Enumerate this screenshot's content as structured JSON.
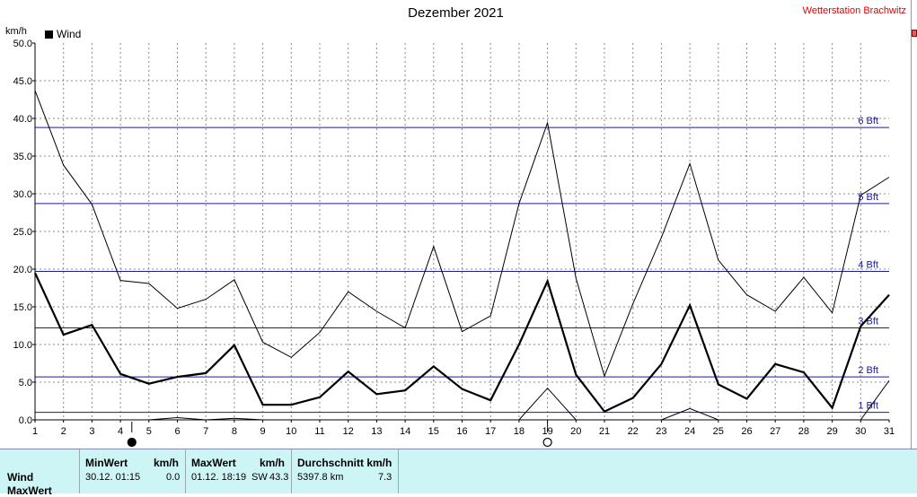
{
  "header": {
    "title": "Dezember 2021",
    "station": "Wetterstation Brachwitz",
    "unit": "km/h",
    "legend_label": "Wind"
  },
  "chart_data": {
    "type": "line",
    "title": "Dezember 2021",
    "ylabel": "km/h",
    "xlim": [
      1,
      31
    ],
    "ylim": [
      0,
      50
    ],
    "x_ticks": [
      "1",
      "2",
      "3",
      "4",
      "5",
      "6",
      "7",
      "8",
      "9",
      "10",
      "11",
      "12",
      "13",
      "14",
      "15",
      "16",
      "17",
      "18",
      "19",
      "20",
      "21",
      "22",
      "23",
      "24",
      "25",
      "26",
      "27",
      "28",
      "29",
      "30",
      "31"
    ],
    "y_ticks": [
      "0.0",
      "5.0",
      "10.0",
      "15.0",
      "20.0",
      "25.0",
      "30.0",
      "35.0",
      "40.0",
      "45.0",
      "50.0"
    ],
    "grid": true,
    "legend_position": "top-left",
    "beaufort_lines": [
      {
        "label": "1 Bft",
        "value": 1.0
      },
      {
        "label": "2 Bft",
        "value": 5.7
      },
      {
        "label": "3 Bft",
        "value": 12.2
      },
      {
        "label": "4 Bft",
        "value": 19.7
      },
      {
        "label": "5 Bft",
        "value": 28.7
      },
      {
        "label": "6 Bft",
        "value": 38.8
      }
    ],
    "series": [
      {
        "name": "Wind",
        "style": "thick",
        "x": [
          1,
          2,
          3,
          4,
          5,
          6,
          7,
          8,
          9,
          10,
          11,
          12,
          13,
          14,
          15,
          16,
          17,
          18,
          19,
          20,
          21,
          22,
          23,
          24,
          25,
          26,
          27,
          28,
          29,
          30,
          31
        ],
        "values": [
          19.5,
          11.3,
          12.6,
          6.1,
          4.8,
          5.7,
          6.2,
          9.9,
          2.0,
          2.0,
          3.0,
          6.4,
          3.4,
          3.9,
          7.1,
          4.1,
          2.6,
          10.0,
          18.4,
          6.0,
          1.1,
          2.9,
          7.4,
          15.2,
          4.7,
          2.8,
          7.4,
          6.3,
          1.6,
          12.4,
          16.6
        ]
      },
      {
        "style": "thin",
        "x": [
          1,
          2,
          3,
          4,
          5,
          6,
          7,
          8,
          9,
          10,
          11,
          12,
          13,
          14,
          15,
          16,
          17,
          18,
          19,
          20,
          21,
          22,
          23,
          24,
          25,
          26,
          27,
          28,
          29,
          30,
          31
        ],
        "values": [
          43.7,
          33.8,
          28.6,
          18.5,
          18.1,
          14.8,
          16.0,
          18.6,
          10.3,
          8.3,
          11.6,
          17.0,
          14.4,
          12.2,
          23.0,
          11.7,
          13.8,
          28.7,
          39.4,
          18.8,
          5.8,
          15.4,
          24.2,
          34.0,
          21.2,
          16.6,
          14.4,
          18.9,
          14.2,
          29.8,
          32.2
        ]
      },
      {
        "style": "thin",
        "x": [
          1,
          2,
          3,
          4,
          5,
          6,
          7,
          8,
          9,
          10,
          11,
          12,
          13,
          14,
          15,
          16,
          17,
          18,
          19,
          20,
          21,
          22,
          23,
          24,
          25,
          26,
          27,
          28,
          29,
          30,
          31
        ],
        "values": [
          0,
          0,
          0,
          0,
          0,
          0.3,
          0,
          0.2,
          0,
          0,
          0,
          0,
          0,
          0,
          0,
          0,
          0,
          0,
          4.2,
          0,
          0,
          0,
          0,
          1.5,
          0,
          0,
          0,
          0,
          0,
          0,
          5.2
        ]
      }
    ],
    "moon_markers": [
      {
        "day": 4,
        "phase": "new"
      },
      {
        "day": 19,
        "phase": "full"
      }
    ]
  },
  "footer": {
    "rows": [
      "Wind",
      "MaxWert"
    ],
    "min_header": "MinWert",
    "min_unit": "km/h",
    "min_datetime": "30.12.  01:15",
    "min_value": "0.0",
    "max_header": "MaxWert",
    "max_unit": "km/h",
    "max_datetime": "01.12.  18:19",
    "max_dir": "SW",
    "max_value": "43.3",
    "avg_header": "Durchschnitt km/h",
    "avg_distance": "5397.8 km",
    "avg_value": "7.3"
  }
}
